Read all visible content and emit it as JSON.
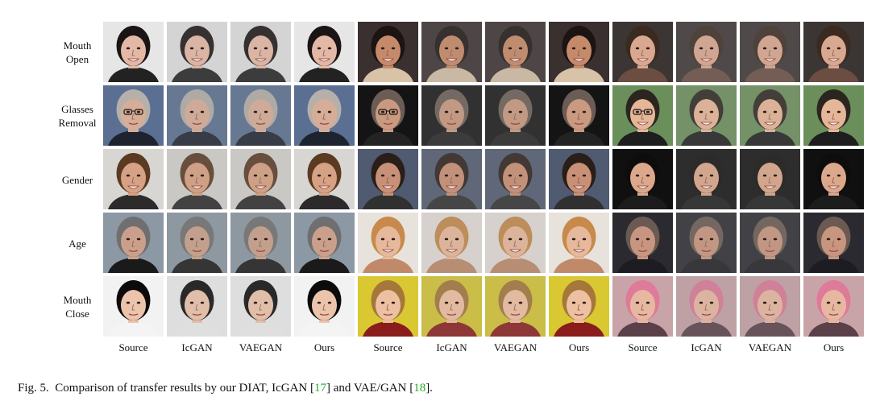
{
  "figure": {
    "row_labels": [
      "Mouth\nOpen",
      "Glasses\nRemoval",
      "Gender",
      "Age",
      "Mouth\nClose"
    ],
    "column_labels": [
      "Source",
      "IcGAN",
      "VAEGAN",
      "Ours",
      "Source",
      "IcGAN",
      "VAEGAN",
      "Ours",
      "Source",
      "IcGAN",
      "VAEGAN",
      "Ours"
    ],
    "caption": {
      "prefix": "Fig. 5.",
      "text_before_ref1": "Comparison of transfer results by our DIAT, IcGAN [",
      "ref1": "17",
      "text_between_refs": "] and VAE/GAN [",
      "ref2": "18",
      "text_after_ref2": "]."
    }
  },
  "colors": {
    "reference_link": "#22aa22",
    "text": "#111111"
  },
  "rows": [
    {
      "groups": [
        {
          "bg": "#e6e6e6",
          "skin": "#e4b8a6",
          "hair": "#1a1414",
          "shirt": "#222222",
          "mouth_open": true,
          "glasses": false
        },
        {
          "bg": "#3a3030",
          "skin": "#c58a6a",
          "hair": "#1b1412",
          "shirt": "#d8c2a8",
          "mouth_open": true,
          "glasses": false
        },
        {
          "bg": "#3b3533",
          "skin": "#d9a891",
          "hair": "#3a2a20",
          "shirt": "#6b4d42",
          "mouth_open": true,
          "glasses": false
        }
      ]
    },
    {
      "groups": [
        {
          "bg": "#5a6f92",
          "skin": "#d6ad98",
          "hair": "#b5b0aa",
          "shirt": "#1e2330",
          "mouth_open": false,
          "glasses": true
        },
        {
          "bg": "#141414",
          "skin": "#c99a80",
          "hair": "#6b5d55",
          "shirt": "#232323",
          "mouth_open": false,
          "glasses": true
        },
        {
          "bg": "#6b8f5a",
          "skin": "#e5b698",
          "hair": "#2b2520",
          "shirt": "#1e1e1e",
          "mouth_open": true,
          "glasses": true
        }
      ]
    },
    {
      "groups": [
        {
          "bg": "#d8d6d2",
          "skin": "#d6a184",
          "hair": "#5b3a22",
          "shirt": "#2c2a2a",
          "mouth_open": true,
          "glasses": false
        },
        {
          "bg": "#505a70",
          "skin": "#c89076",
          "hair": "#2a1e18",
          "shirt": "#303030",
          "mouth_open": true,
          "glasses": false
        },
        {
          "bg": "#101010",
          "skin": "#dba88c",
          "hair": "#0f0c0c",
          "shirt": "#1c1c1c",
          "mouth_open": true,
          "glasses": false
        }
      ]
    },
    {
      "groups": [
        {
          "bg": "#8c98a4",
          "skin": "#caa08c",
          "hair": "#6f6f6f",
          "shirt": "#1a1a1a",
          "mouth_open": false,
          "glasses": false
        },
        {
          "bg": "#e8e2dc",
          "skin": "#e6b99c",
          "hair": "#c88a4a",
          "shirt": "#c08a6a",
          "mouth_open": true,
          "glasses": false
        },
        {
          "bg": "#2a2a30",
          "skin": "#c89680",
          "hair": "#6a5a52",
          "shirt": "#1c1c22",
          "mouth_open": false,
          "glasses": false
        }
      ]
    },
    {
      "groups": [
        {
          "bg": "#f2f2f2",
          "skin": "#ecc4ac",
          "hair": "#0c0a0a",
          "shirt": "#f4f4f4",
          "mouth_open": false,
          "glasses": false
        },
        {
          "bg": "#d9c832",
          "skin": "#ecc0a0",
          "hair": "#a6773a",
          "shirt": "#8a1c1c",
          "mouth_open": false,
          "glasses": false
        },
        {
          "bg": "#c8a4a8",
          "skin": "#e6b8a2",
          "hair": "#e07a9a",
          "shirt": "#5a4048",
          "mouth_open": false,
          "glasses": false
        }
      ]
    }
  ]
}
